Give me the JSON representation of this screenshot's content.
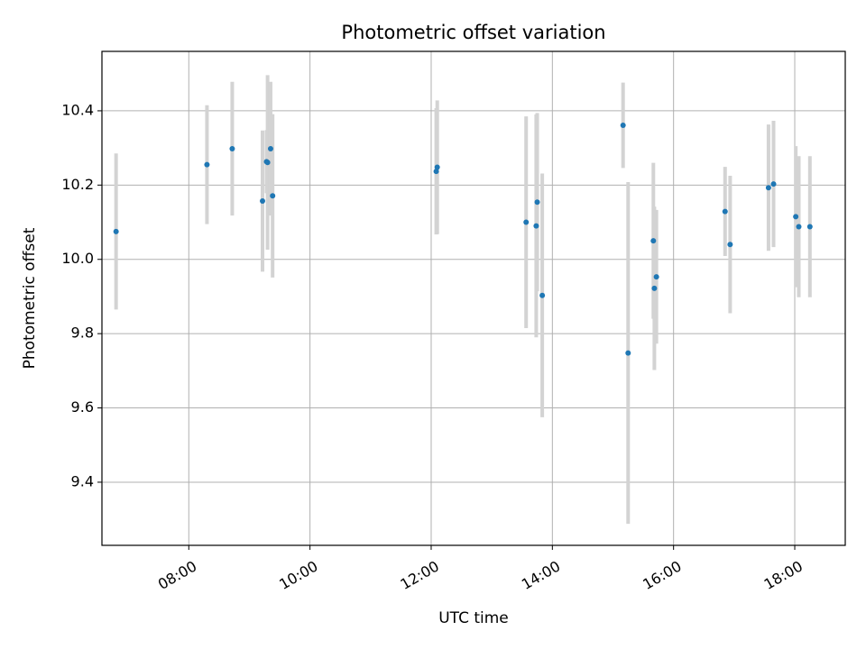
{
  "chart_data": {
    "type": "scatter",
    "title": "Photometric offset variation",
    "xlabel": "UTC time",
    "ylabel": "Photometric offset",
    "x_axis_type": "time",
    "xlim": [
      "06:34",
      "18:50"
    ],
    "ylim": [
      9.23,
      10.56
    ],
    "x_ticks": [
      "08:00",
      "10:00",
      "12:00",
      "14:00",
      "16:00",
      "18:00"
    ],
    "y_ticks": [
      9.4,
      9.6,
      9.8,
      10.0,
      10.2,
      10.4
    ],
    "grid": true,
    "marker_color": "#1f77b4",
    "errorbar_color": "#d3d3d3",
    "points": [
      {
        "t": "06:48",
        "y": 10.075,
        "err": 0.21
      },
      {
        "t": "08:18",
        "y": 10.255,
        "err": 0.16
      },
      {
        "t": "08:43",
        "y": 10.298,
        "err": 0.18
      },
      {
        "t": "09:13",
        "y": 10.157,
        "err": 0.19
      },
      {
        "t": "09:17",
        "y": 10.263,
        "err": 0.085
      },
      {
        "t": "09:18",
        "y": 10.261,
        "err": 0.235
      },
      {
        "t": "09:21",
        "y": 10.298,
        "err": 0.18
      },
      {
        "t": "09:23",
        "y": 10.171,
        "err": 0.22
      },
      {
        "t": "12:05",
        "y": 10.237,
        "err": 0.17
      },
      {
        "t": "12:06",
        "y": 10.248,
        "err": 0.18
      },
      {
        "t": "13:34",
        "y": 10.1,
        "err": 0.285
      },
      {
        "t": "13:44",
        "y": 10.09,
        "err": 0.3
      },
      {
        "t": "13:45",
        "y": 10.154,
        "err": 0.24
      },
      {
        "t": "13:50",
        "y": 9.903,
        "err": 0.328
      },
      {
        "t": "15:10",
        "y": 10.361,
        "err": 0.115
      },
      {
        "t": "15:15",
        "y": 9.748,
        "err": 0.46
      },
      {
        "t": "15:40",
        "y": 10.05,
        "err": 0.21
      },
      {
        "t": "15:41",
        "y": 9.922,
        "err": 0.22
      },
      {
        "t": "15:43",
        "y": 9.953,
        "err": 0.18
      },
      {
        "t": "16:51",
        "y": 10.129,
        "err": 0.12
      },
      {
        "t": "16:56",
        "y": 10.04,
        "err": 0.185
      },
      {
        "t": "17:34",
        "y": 10.193,
        "err": 0.17
      },
      {
        "t": "17:39",
        "y": 10.203,
        "err": 0.17
      },
      {
        "t": "18:01",
        "y": 10.115,
        "err": 0.19
      },
      {
        "t": "18:04",
        "y": 10.088,
        "err": 0.19
      },
      {
        "t": "18:15",
        "y": 10.088,
        "err": 0.19
      }
    ]
  }
}
